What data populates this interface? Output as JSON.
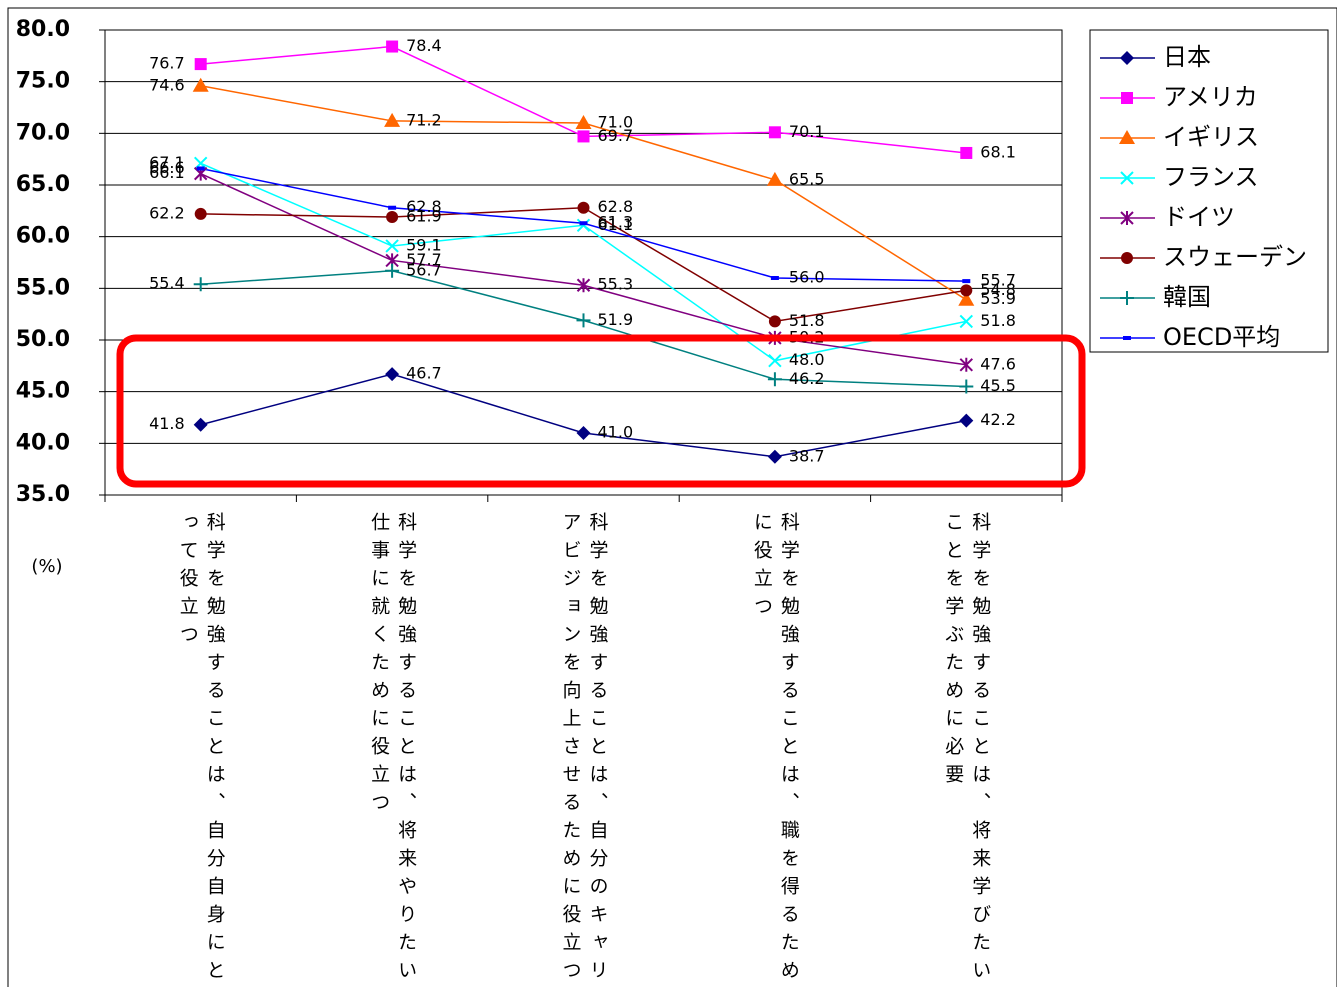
{
  "chart_data": {
    "type": "line",
    "ylabel": "(%)",
    "categories": [
      "科学を勉強することは、自分自身にとって役立つ",
      "科学を勉強することは、将来やりたい仕事に就くために役立つ",
      "科学を勉強することは、自分のキャリアビジョンを向上させるために役立つ",
      "科学を勉強することは、職を得るために役立つ",
      "科学を勉強することは、将来学びたいことを学ぶために必要"
    ],
    "ylim": [
      35,
      80
    ],
    "yticks": [
      {
        "value": 35,
        "label": "35.0"
      },
      {
        "value": 40,
        "label": "40.0"
      },
      {
        "value": 45,
        "label": "45.0"
      },
      {
        "value": 50,
        "label": "50.0"
      },
      {
        "value": 55,
        "label": "55.0"
      },
      {
        "value": 60,
        "label": "60.0"
      },
      {
        "value": 65,
        "label": "65.0"
      },
      {
        "value": 70,
        "label": "70.0"
      },
      {
        "value": 75,
        "label": "75.0"
      },
      {
        "value": 80,
        "label": "80.0"
      }
    ],
    "grid": true,
    "legend": "right",
    "series": [
      {
        "name": "日本",
        "color": "#000080",
        "marker": "diamond",
        "values": [
          41.8,
          46.7,
          41.0,
          38.7,
          42.2
        ],
        "value_labels": [
          "41.8",
          "46.7",
          "41.0",
          "38.7",
          "42.2"
        ]
      },
      {
        "name": "アメリカ",
        "color": "#ff00ff",
        "marker": "square",
        "values": [
          76.7,
          78.4,
          69.7,
          70.1,
          68.1
        ],
        "value_labels": [
          "76.7",
          "78.4",
          "69.7",
          "70.1",
          "68.1"
        ]
      },
      {
        "name": "イギリス",
        "color": "#ff6600",
        "marker": "triangle",
        "values": [
          74.6,
          71.2,
          71.0,
          65.5,
          53.9
        ],
        "value_labels": [
          "74.6",
          "71.2",
          "71.0",
          "65.5",
          "53.9"
        ]
      },
      {
        "name": "フランス",
        "color": "#00ffff",
        "marker": "x",
        "values": [
          67.1,
          59.1,
          61.1,
          48.0,
          51.8
        ],
        "value_labels": [
          "67.1",
          "59.1",
          "61.1",
          "48.0",
          "51.8"
        ]
      },
      {
        "name": "ドイツ",
        "color": "#800080",
        "marker": "asterisk",
        "values": [
          66.1,
          57.7,
          55.3,
          50.2,
          47.6
        ],
        "value_labels": [
          "66.1",
          "57.7",
          "55.3",
          "50.2",
          "47.6"
        ]
      },
      {
        "name": "スウェーデン",
        "color": "#800000",
        "marker": "circle",
        "values": [
          62.2,
          61.9,
          62.8,
          51.8,
          54.8
        ],
        "value_labels": [
          "62.2",
          "61.9",
          "62.8",
          "51.8",
          "54.8"
        ]
      },
      {
        "name": "韓国",
        "color": "#008080",
        "marker": "plus",
        "values": [
          55.4,
          56.7,
          51.9,
          46.2,
          45.5
        ],
        "value_labels": [
          "55.4",
          "56.7",
          "51.9",
          "46.2",
          "45.5"
        ]
      },
      {
        "name": "OECD平均",
        "color": "#0000ff",
        "marker": "dash",
        "values": [
          66.6,
          62.8,
          61.3,
          56.0,
          55.7
        ],
        "value_labels": [
          "66.6",
          "62.8",
          "61.3",
          "56.0",
          "55.7"
        ]
      }
    ]
  }
}
